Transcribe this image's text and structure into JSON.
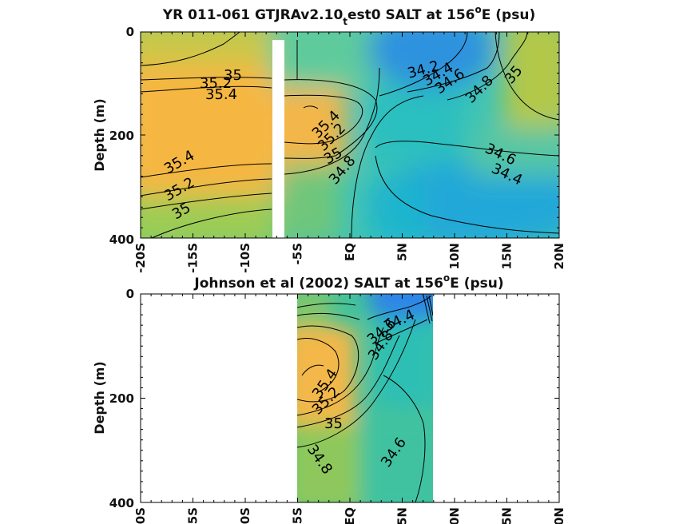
{
  "chart_data": [
    {
      "type": "heatmap",
      "title_main": "YR 011-061 GTJRAv2.10",
      "title_sub": "t",
      "title_rest": "est0 SALT at 156",
      "title_sup": "o",
      "title_end": "E (psu)",
      "ylabel": "Depth (m)",
      "xlim": [
        -20,
        20
      ],
      "ylim": [
        0,
        400
      ],
      "y_ticks": [
        "0",
        "200",
        "400"
      ],
      "x_ticks": [
        "-20S",
        "-15S",
        "-10S",
        "-5S",
        "EQ",
        "5N",
        "10N",
        "15N",
        "20N"
      ],
      "contour_labels": [
        "35",
        "35.2",
        "35.4",
        "34.2",
        "34.4",
        "34.6",
        "34.8",
        "35",
        "35.4",
        "35.2",
        "35",
        "34.8",
        "35.4",
        "35.2",
        "35",
        "34.6",
        "34.4"
      ],
      "grid": false,
      "missing_band_lat": [
        -7.5,
        -6.4
      ]
    },
    {
      "type": "heatmap",
      "title_main": "Johnson et al (2002) SALT at 156",
      "title_sup": "o",
      "title_end": "E (psu)",
      "ylabel": "Depth (m)",
      "xlim": [
        -20,
        20
      ],
      "ylim": [
        0,
        400
      ],
      "data_lat_range": [
        -5,
        8
      ],
      "y_ticks": [
        "0",
        "200",
        "400"
      ],
      "x_ticks": [
        "0S",
        "5S",
        "0S",
        "5S",
        "EQ",
        "5N",
        "0N",
        "5N",
        "0N"
      ],
      "contour_labels": [
        "34.4",
        "34.6",
        "34.8",
        "35.4",
        "35.2",
        "35",
        "34.8",
        "34.6"
      ],
      "grid": false
    }
  ],
  "colors": {
    "fresh": "#2f8fe0",
    "mid": "#20b8c6",
    "green": "#8cc75a",
    "salty": "#f8b63f"
  }
}
